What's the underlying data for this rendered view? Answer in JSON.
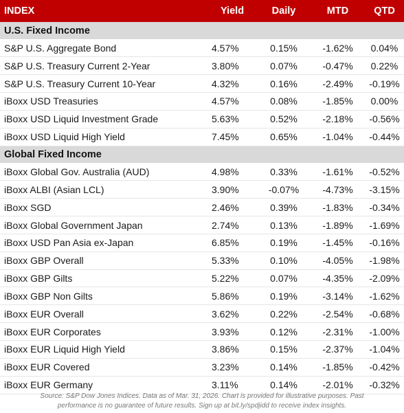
{
  "headers": {
    "index": "INDEX",
    "yield": "Yield",
    "daily": "Daily",
    "mtd": "MTD",
    "qtd": "QTD"
  },
  "colors": {
    "header_bg": "#c00000",
    "section_bg": "#d9d9d9",
    "positive": "#2e5ca8",
    "negative": "#e0302a"
  },
  "sections": [
    {
      "title": "U.S. Fixed Income",
      "rows": [
        {
          "name": "S&P U.S. Aggregate Bond",
          "yield": "4.57%",
          "daily": "0.15%",
          "mtd": "-1.62%",
          "qtd": "0.04%"
        },
        {
          "name": "S&P U.S. Treasury Current 2-Year",
          "yield": "3.80%",
          "daily": "0.07%",
          "mtd": "-0.47%",
          "qtd": "0.22%"
        },
        {
          "name": "S&P U.S. Treasury Current 10-Year",
          "yield": "4.32%",
          "daily": "0.16%",
          "mtd": "-2.49%",
          "qtd": "-0.19%"
        },
        {
          "name": "iBoxx USD Treasuries",
          "yield": "4.57%",
          "daily": "0.08%",
          "mtd": "-1.85%",
          "qtd": "0.00%"
        },
        {
          "name": "iBoxx USD Liquid Investment Grade",
          "yield": "5.63%",
          "daily": "0.52%",
          "mtd": "-2.18%",
          "qtd": "-0.56%"
        },
        {
          "name": "iBoxx USD Liquid High Yield",
          "yield": "7.45%",
          "daily": "0.65%",
          "mtd": "-1.04%",
          "qtd": "-0.44%"
        }
      ]
    },
    {
      "title": "Global Fixed Income",
      "rows": [
        {
          "name": "iBoxx Global Gov. Australia (AUD)",
          "yield": "4.98%",
          "daily": "0.33%",
          "mtd": "-1.61%",
          "qtd": "-0.52%"
        },
        {
          "name": "iBoxx ALBI (Asian LCL)",
          "yield": "3.90%",
          "daily": "-0.07%",
          "mtd": "-4.73%",
          "qtd": "-3.15%"
        },
        {
          "name": "iBoxx SGD",
          "yield": "2.46%",
          "daily": "0.39%",
          "mtd": "-1.83%",
          "qtd": "-0.34%"
        },
        {
          "name": "iBoxx Global Government Japan",
          "yield": "2.74%",
          "daily": "0.13%",
          "mtd": "-1.89%",
          "qtd": "-1.69%"
        },
        {
          "name": "iBoxx USD Pan Asia ex-Japan",
          "yield": "6.85%",
          "daily": "0.19%",
          "mtd": "-1.45%",
          "qtd": "-0.16%"
        },
        {
          "name": "iBoxx GBP Overall",
          "yield": "5.33%",
          "daily": "0.10%",
          "mtd": "-4.05%",
          "qtd": "-1.98%"
        },
        {
          "name": "iBoxx GBP Gilts",
          "yield": "5.22%",
          "daily": "0.07%",
          "mtd": "-4.35%",
          "qtd": "-2.09%"
        },
        {
          "name": "iBoxx GBP Non Gilts",
          "yield": "5.86%",
          "daily": "0.19%",
          "mtd": "-3.14%",
          "qtd": "-1.62%"
        },
        {
          "name": "iBoxx EUR Overall",
          "yield": "3.62%",
          "daily": "0.22%",
          "mtd": "-2.54%",
          "qtd": "-0.68%"
        },
        {
          "name": "iBoxx EUR Corporates",
          "yield": "3.93%",
          "daily": "0.12%",
          "mtd": "-2.31%",
          "qtd": "-1.00%"
        },
        {
          "name": "iBoxx EUR Liquid High Yield",
          "yield": "3.86%",
          "daily": "0.15%",
          "mtd": "-2.37%",
          "qtd": "-1.04%"
        },
        {
          "name": "iBoxx EUR Covered",
          "yield": "3.23%",
          "daily": "0.14%",
          "mtd": "-1.85%",
          "qtd": "-0.42%"
        },
        {
          "name": "iBoxx EUR Germany",
          "yield": "3.11%",
          "daily": "0.14%",
          "mtd": "-2.01%",
          "qtd": "-0.32%"
        }
      ]
    }
  ],
  "source_line1": "Source: S&P Dow Jones Indices. Data as of Mar. 31, 2026. Chart is provided for illustrative purposes. Past",
  "source_line2": "performance is no guarantee of future results. Sign up at bit.ly/spdjidd to receive index insights."
}
